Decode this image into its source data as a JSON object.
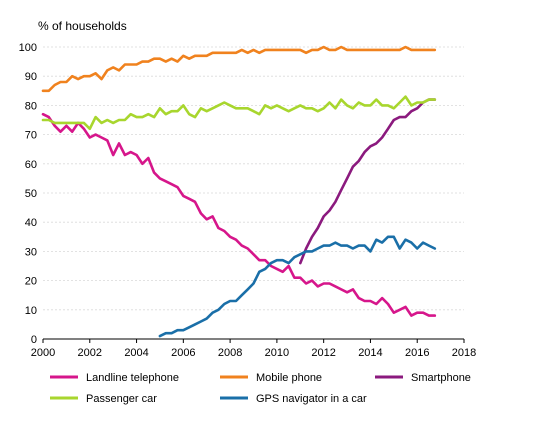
{
  "chart_data": {
    "type": "line",
    "title": "",
    "ylabel": "% of households",
    "xlabel": "",
    "xlim": [
      2000,
      2018
    ],
    "ylim": [
      0,
      100
    ],
    "x_ticks": [
      2000,
      2002,
      2004,
      2006,
      2008,
      2010,
      2012,
      2014,
      2016,
      2018
    ],
    "y_ticks": [
      0,
      10,
      20,
      30,
      40,
      50,
      60,
      70,
      80,
      90,
      100
    ],
    "grid": "horizontal",
    "legend_position": "bottom",
    "series": [
      {
        "name": "Landline telephone",
        "color": "#d6168b",
        "x": [
          2000.0,
          2000.25,
          2000.5,
          2000.75,
          2001.0,
          2001.25,
          2001.5,
          2001.75,
          2002.0,
          2002.25,
          2002.5,
          2002.75,
          2003.0,
          2003.25,
          2003.5,
          2003.75,
          2004.0,
          2004.25,
          2004.5,
          2004.75,
          2005.0,
          2005.25,
          2005.5,
          2005.75,
          2006.0,
          2006.25,
          2006.5,
          2006.75,
          2007.0,
          2007.25,
          2007.5,
          2007.75,
          2008.0,
          2008.25,
          2008.5,
          2008.75,
          2009.0,
          2009.25,
          2009.5,
          2009.75,
          2010.0,
          2010.25,
          2010.5,
          2010.75,
          2011.0,
          2011.25,
          2011.5,
          2011.75,
          2012.0,
          2012.25,
          2012.5,
          2012.75,
          2013.0,
          2013.25,
          2013.5,
          2013.75,
          2014.0,
          2014.25,
          2014.5,
          2014.75,
          2015.0,
          2015.25,
          2015.5,
          2015.75,
          2016.0,
          2016.25,
          2016.5,
          2016.75
        ],
        "values": [
          77,
          76,
          73,
          71,
          73,
          71,
          74,
          72,
          69,
          70,
          69,
          68,
          63,
          67,
          63,
          64,
          63,
          60,
          62,
          57,
          55,
          54,
          53,
          52,
          49,
          48,
          47,
          43,
          41,
          42,
          38,
          37,
          35,
          34,
          32,
          31,
          29,
          27,
          27,
          25,
          24,
          23,
          25,
          21,
          21,
          19,
          20,
          18,
          19,
          19,
          18,
          17,
          16,
          17,
          14,
          13,
          13,
          12,
          14,
          12,
          9,
          10,
          11,
          8,
          9,
          9,
          8,
          8
        ]
      },
      {
        "name": "Mobile phone",
        "color": "#f0821e",
        "x": [
          2000.0,
          2000.25,
          2000.5,
          2000.75,
          2001.0,
          2001.25,
          2001.5,
          2001.75,
          2002.0,
          2002.25,
          2002.5,
          2002.75,
          2003.0,
          2003.25,
          2003.5,
          2003.75,
          2004.0,
          2004.25,
          2004.5,
          2004.75,
          2005.0,
          2005.25,
          2005.5,
          2005.75,
          2006.0,
          2006.25,
          2006.5,
          2006.75,
          2007.0,
          2007.25,
          2007.5,
          2007.75,
          2008.0,
          2008.25,
          2008.5,
          2008.75,
          2009.0,
          2009.25,
          2009.5,
          2009.75,
          2010.0,
          2010.25,
          2010.5,
          2010.75,
          2011.0,
          2011.25,
          2011.5,
          2011.75,
          2012.0,
          2012.25,
          2012.5,
          2012.75,
          2013.0,
          2013.25,
          2013.5,
          2013.75,
          2014.0,
          2014.25,
          2014.5,
          2014.75,
          2015.0,
          2015.25,
          2015.5,
          2015.75,
          2016.0,
          2016.25,
          2016.5,
          2016.75
        ],
        "values": [
          85,
          85,
          87,
          88,
          88,
          90,
          89,
          90,
          90,
          91,
          89,
          92,
          93,
          92,
          94,
          94,
          94,
          95,
          95,
          96,
          96,
          95,
          96,
          95,
          97,
          96,
          97,
          97,
          97,
          98,
          98,
          98,
          98,
          98,
          99,
          98,
          99,
          98,
          99,
          99,
          99,
          99,
          99,
          99,
          99,
          98,
          99,
          99,
          100,
          99,
          99,
          100,
          99,
          99,
          99,
          99,
          99,
          99,
          99,
          99,
          99,
          99,
          100,
          99,
          99,
          99,
          99,
          99
        ]
      },
      {
        "name": "Smartphone",
        "color": "#8b1a7e",
        "x": [
          2011.0,
          2011.25,
          2011.5,
          2011.75,
          2012.0,
          2012.25,
          2012.5,
          2012.75,
          2013.0,
          2013.25,
          2013.5,
          2013.75,
          2014.0,
          2014.25,
          2014.5,
          2014.75,
          2015.0,
          2015.25,
          2015.5,
          2015.75,
          2016.0,
          2016.25,
          2016.5,
          2016.75
        ],
        "values": [
          26,
          31,
          35,
          38,
          42,
          44,
          47,
          51,
          55,
          59,
          61,
          64,
          66,
          67,
          69,
          72,
          75,
          76,
          76,
          78,
          79,
          81,
          82,
          82
        ]
      },
      {
        "name": "Passenger car",
        "color": "#a8d62e",
        "x": [
          2000.0,
          2000.25,
          2000.5,
          2000.75,
          2001.0,
          2001.25,
          2001.5,
          2001.75,
          2002.0,
          2002.25,
          2002.5,
          2002.75,
          2003.0,
          2003.25,
          2003.5,
          2003.75,
          2004.0,
          2004.25,
          2004.5,
          2004.75,
          2005.0,
          2005.25,
          2005.5,
          2005.75,
          2006.0,
          2006.25,
          2006.5,
          2006.75,
          2007.0,
          2007.25,
          2007.5,
          2007.75,
          2008.0,
          2008.25,
          2008.5,
          2008.75,
          2009.0,
          2009.25,
          2009.5,
          2009.75,
          2010.0,
          2010.25,
          2010.5,
          2010.75,
          2011.0,
          2011.25,
          2011.5,
          2011.75,
          2012.0,
          2012.25,
          2012.5,
          2012.75,
          2013.0,
          2013.25,
          2013.5,
          2013.75,
          2014.0,
          2014.25,
          2014.5,
          2014.75,
          2015.0,
          2015.25,
          2015.5,
          2015.75,
          2016.0,
          2016.25,
          2016.5,
          2016.75
        ],
        "values": [
          75,
          75,
          74,
          74,
          74,
          74,
          74,
          74,
          72,
          76,
          74,
          75,
          74,
          75,
          75,
          77,
          76,
          76,
          77,
          76,
          79,
          77,
          78,
          78,
          80,
          77,
          76,
          79,
          78,
          79,
          80,
          81,
          80,
          79,
          79,
          79,
          78,
          77,
          80,
          79,
          80,
          79,
          78,
          79,
          80,
          79,
          79,
          78,
          79,
          81,
          79,
          82,
          80,
          79,
          81,
          80,
          80,
          82,
          80,
          80,
          79,
          81,
          83,
          80,
          81,
          81,
          82,
          82
        ]
      },
      {
        "name": "GPS navigator in a car",
        "color": "#1a6fa8",
        "x": [
          2005.0,
          2005.25,
          2005.5,
          2005.75,
          2006.0,
          2006.25,
          2006.5,
          2006.75,
          2007.0,
          2007.25,
          2007.5,
          2007.75,
          2008.0,
          2008.25,
          2008.5,
          2008.75,
          2009.0,
          2009.25,
          2009.5,
          2009.75,
          2010.0,
          2010.25,
          2010.5,
          2010.75,
          2011.0,
          2011.25,
          2011.5,
          2011.75,
          2012.0,
          2012.25,
          2012.5,
          2012.75,
          2013.0,
          2013.25,
          2013.5,
          2013.75,
          2014.0,
          2014.25,
          2014.5,
          2014.75,
          2015.0,
          2015.25,
          2015.5,
          2015.75,
          2016.0,
          2016.25,
          2016.5,
          2016.75
        ],
        "values": [
          1,
          2,
          2,
          3,
          3,
          4,
          5,
          6,
          7,
          9,
          10,
          12,
          13,
          13,
          15,
          17,
          19,
          23,
          24,
          26,
          27,
          27,
          26,
          28,
          29,
          30,
          30,
          31,
          32,
          32,
          33,
          32,
          32,
          31,
          32,
          32,
          30,
          34,
          33,
          35,
          35,
          31,
          34,
          33,
          31,
          33,
          32,
          31
        ]
      }
    ]
  }
}
